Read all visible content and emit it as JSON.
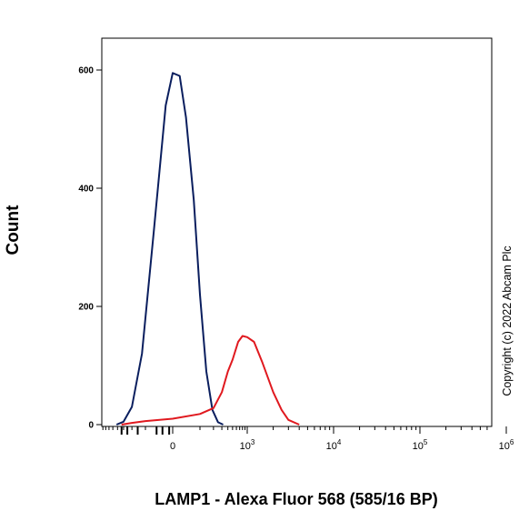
{
  "chart_data": {
    "type": "line",
    "title": "",
    "xlabel": "LAMP1 - Alexa Fluor 568 (585/16 BP)",
    "ylabel": "Count",
    "x_scale": "biexponential",
    "ylim": [
      0,
      660
    ],
    "y_ticks": [
      0,
      200,
      400,
      600
    ],
    "x_ticks": [
      {
        "base": "0",
        "exp": ""
      },
      {
        "base": "10",
        "exp": "3"
      },
      {
        "base": "10",
        "exp": "4"
      },
      {
        "base": "10",
        "exp": "5"
      },
      {
        "base": "10",
        "exp": "6"
      }
    ],
    "grid": false,
    "legend": "none",
    "annotation": "Copyright (c) 2022 Abcam Plc",
    "series": [
      {
        "color": "#0a1e5e",
        "points": [
          [
            -420,
            0
          ],
          [
            -300,
            5
          ],
          [
            -200,
            30
          ],
          [
            -120,
            120
          ],
          [
            -60,
            330
          ],
          [
            -20,
            540
          ],
          [
            0,
            595
          ],
          [
            20,
            590
          ],
          [
            40,
            520
          ],
          [
            70,
            380
          ],
          [
            100,
            220
          ],
          [
            140,
            90
          ],
          [
            190,
            25
          ],
          [
            250,
            4
          ],
          [
            320,
            0
          ]
        ]
      },
      {
        "color": "#e0191f",
        "points": [
          [
            -330,
            0
          ],
          [
            -200,
            3
          ],
          [
            -100,
            6
          ],
          [
            0,
            10
          ],
          [
            100,
            18
          ],
          [
            200,
            28
          ],
          [
            300,
            55
          ],
          [
            400,
            90
          ],
          [
            500,
            110
          ],
          [
            650,
            140
          ],
          [
            800,
            150
          ],
          [
            1000,
            148
          ],
          [
            1200,
            140
          ],
          [
            1500,
            105
          ],
          [
            2000,
            55
          ],
          [
            2500,
            25
          ],
          [
            3000,
            8
          ],
          [
            4000,
            0
          ]
        ]
      }
    ]
  }
}
